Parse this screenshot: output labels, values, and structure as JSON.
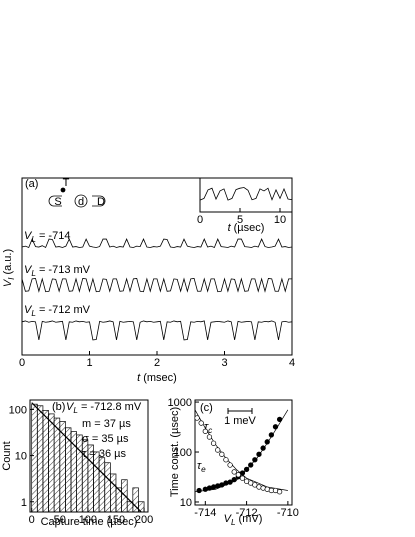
{
  "chart_data": [
    {
      "type": "line",
      "panel_label": "(a)",
      "device_labels": [
        "S",
        "d",
        "D",
        "T"
      ],
      "x_label": {
        "main": "t",
        "rest": "(msec)"
      },
      "y_label": {
        "main": "V",
        "sub": "I",
        "rest": "(a.u.)"
      },
      "xlim": [
        0,
        4
      ],
      "ylim": [
        0,
        4
      ],
      "xticks": [
        0,
        1,
        2,
        3,
        4
      ],
      "x": [
        0,
        0.05,
        0.1,
        0.15,
        0.2,
        0.25,
        0.3,
        0.35,
        0.4,
        0.45,
        0.5,
        0.55,
        0.6,
        0.65,
        0.7,
        0.75,
        0.8,
        0.85,
        0.9,
        0.95,
        1,
        1.05,
        1.1,
        1.15,
        1.2,
        1.25,
        1.3,
        1.35,
        1.4,
        1.45,
        1.5,
        1.55,
        1.6,
        1.65,
        1.7,
        1.75,
        1.8,
        1.85,
        1.9,
        1.95,
        2,
        2.05,
        2.1,
        2.15,
        2.2,
        2.25,
        2.3,
        2.35,
        2.4,
        2.45,
        2.5,
        2.55,
        2.6,
        2.65,
        2.7,
        2.75,
        2.8,
        2.85,
        2.9,
        2.95,
        3,
        3.05,
        3.1,
        3.15,
        3.2,
        3.25,
        3.3,
        3.35,
        3.4,
        3.45,
        3.5,
        3.55,
        3.6,
        3.65,
        3.7,
        3.75,
        3.8,
        3.85,
        3.9,
        3.95,
        4
      ],
      "series": [
        {
          "name": {
            "main": "V",
            "sub": "L",
            "rest": "= -714"
          },
          "color": "#000000",
          "values": [
            2.44,
            2.46,
            2.43,
            2.62,
            2.45,
            2.44,
            2.47,
            2.43,
            2.62,
            2.61,
            2.44,
            2.45,
            2.43,
            2.46,
            2.62,
            2.44,
            2.45,
            2.43,
            2.44,
            2.62,
            2.46,
            2.44,
            2.43,
            2.45,
            2.62,
            2.62,
            2.44,
            2.46,
            2.43,
            2.45,
            2.44,
            2.62,
            2.44,
            2.43,
            2.46,
            2.45,
            2.62,
            2.44,
            2.43,
            2.45,
            2.44,
            2.46,
            2.62,
            2.61,
            2.44,
            2.43,
            2.45,
            2.44,
            2.62,
            2.46,
            2.44,
            2.43,
            2.45,
            2.44,
            2.62,
            2.44,
            2.46,
            2.43,
            2.62,
            2.45,
            2.44,
            2.43,
            2.46,
            2.44,
            2.62,
            2.62,
            2.45,
            2.44,
            2.43,
            2.46,
            2.44,
            2.62,
            2.45,
            2.43,
            2.44,
            2.46,
            2.62,
            2.44,
            2.45,
            2.43,
            2.44
          ]
        },
        {
          "name": {
            "main": "V",
            "sub": "L",
            "rest": "= -713 mV"
          },
          "color": "#000000",
          "values": [
            1.72,
            1.44,
            1.45,
            1.72,
            1.73,
            1.44,
            1.72,
            1.43,
            1.44,
            1.72,
            1.71,
            1.44,
            1.72,
            1.72,
            1.44,
            1.45,
            1.72,
            1.44,
            1.73,
            1.72,
            1.44,
            1.72,
            1.43,
            1.44,
            1.72,
            1.71,
            1.44,
            1.72,
            1.72,
            1.44,
            1.45,
            1.72,
            1.44,
            1.72,
            1.73,
            1.44,
            1.43,
            1.72,
            1.44,
            1.72,
            1.72,
            1.44,
            1.72,
            1.44,
            1.45,
            1.72,
            1.71,
            1.44,
            1.72,
            1.44,
            1.72,
            1.73,
            1.44,
            1.44,
            1.72,
            1.44,
            1.72,
            1.72,
            1.43,
            1.44,
            1.72,
            1.44,
            1.72,
            1.71,
            1.44,
            1.72,
            1.44,
            1.45,
            1.72,
            1.72,
            1.44,
            1.72,
            1.44,
            1.73,
            1.72,
            1.44,
            1.44,
            1.72,
            1.44,
            1.72,
            1.72
          ]
        },
        {
          "name": {
            "main": "V",
            "sub": "L",
            "rest": "= -712 mV"
          },
          "color": "#000000",
          "values": [
            0.75,
            0.77,
            0.74,
            0.76,
            0.75,
            0.34,
            0.76,
            0.74,
            0.75,
            0.77,
            0.74,
            0.75,
            0.76,
            0.34,
            0.75,
            0.74,
            0.77,
            0.75,
            0.76,
            0.74,
            0.75,
            0.34,
            0.35,
            0.76,
            0.74,
            0.75,
            0.77,
            0.75,
            0.34,
            0.76,
            0.74,
            0.75,
            0.76,
            0.75,
            0.34,
            0.74,
            0.77,
            0.75,
            0.76,
            0.74,
            0.75,
            0.76,
            0.34,
            0.75,
            0.74,
            0.77,
            0.75,
            0.76,
            0.34,
            0.35,
            0.75,
            0.74,
            0.76,
            0.75,
            0.77,
            0.34,
            0.74,
            0.75,
            0.76,
            0.75,
            0.74,
            0.77,
            0.75,
            0.34,
            0.76,
            0.74,
            0.75,
            0.76,
            0.75,
            0.34,
            0.75,
            0.74,
            0.76,
            0.75,
            0.77,
            0.74,
            0.34,
            0.75,
            0.76,
            0.74,
            0.75
          ]
        }
      ]
    },
    {
      "type": "line",
      "x_label": {
        "main": "t",
        "rest": "(µsec)"
      },
      "xlim": [
        0,
        11.5
      ],
      "ylim": [
        0,
        1
      ],
      "xticks": [
        0,
        5,
        10
      ],
      "x": [
        0,
        0.5,
        1,
        1.5,
        2,
        2.5,
        3,
        3.5,
        4,
        4.5,
        5,
        5.5,
        6,
        6.5,
        7,
        7.5,
        8,
        8.5,
        9,
        9.5,
        10,
        10.5,
        11,
        11.5
      ],
      "series": [
        {
          "color": "#000000",
          "values": [
            0.35,
            0.4,
            0.65,
            0.7,
            0.38,
            0.62,
            0.68,
            0.35,
            0.4,
            0.66,
            0.7,
            0.72,
            0.64,
            0.36,
            0.4,
            0.68,
            0.62,
            0.7,
            0.36,
            0.65,
            0.4,
            0.68,
            0.38,
            0.36
          ]
        }
      ]
    },
    {
      "type": "histogram",
      "panel_label": "(b)",
      "condition": {
        "main": "V",
        "sub": "L",
        "rest": "= -712.8 mV"
      },
      "annotations": [
        "m = 37 µs",
        "σ = 35 µs",
        "τ = 36 µs"
      ],
      "x_label": "Capture time (µsec)",
      "y_label": "Count",
      "log_y": true,
      "xlim": [
        -3,
        207
      ],
      "ylim": [
        0.6,
        160
      ],
      "xticks": [
        0,
        50,
        100,
        150,
        200
      ],
      "yticks": [
        1,
        10,
        100
      ],
      "bins": [
        0,
        10,
        20,
        30,
        40,
        50,
        60,
        70,
        80,
        90,
        100,
        110,
        120,
        130,
        140,
        150,
        160,
        170,
        180,
        190,
        200
      ],
      "counts": [
        130,
        120,
        95,
        80,
        65,
        55,
        40,
        33,
        28,
        22,
        17,
        12,
        9,
        7,
        4,
        2,
        3,
        1,
        2,
        1
      ],
      "fit": {
        "x": [
          0,
          195
        ],
        "values": [
          140,
          0.6
        ]
      }
    },
    {
      "type": "scatter",
      "panel_label": "(c)",
      "scale_bar": "1 meV",
      "x_label": {
        "main": "V",
        "sub": "L",
        "rest": "(mV)"
      },
      "y_label": "Time const. (µsec)",
      "log_y": true,
      "xlim": [
        -714.5,
        -709.8
      ],
      "ylim": [
        8.7,
        1100
      ],
      "xticks": [
        -714,
        -712,
        -710
      ],
      "yticks": [
        10,
        100,
        1000
      ],
      "series": [
        {
          "name": {
            "main": "τ",
            "sub": "c"
          },
          "marker": "filled",
          "x": [
            -714.3,
            -714.0,
            -713.8,
            -713.6,
            -713.4,
            -713.2,
            -713.0,
            -712.8,
            -712.6,
            -712.4,
            -712.2,
            -712.0,
            -711.8,
            -711.6,
            -711.4,
            -711.2,
            -711.0,
            -710.8,
            -710.6,
            -710.4
          ],
          "values": [
            17,
            18,
            19,
            20,
            21,
            22,
            24,
            25,
            28,
            32,
            38,
            45,
            55,
            70,
            90,
            120,
            160,
            220,
            320,
            450
          ]
        },
        {
          "name": {
            "main": "τ",
            "sub": "e"
          },
          "marker": "open",
          "x": [
            -714.4,
            -714.2,
            -714.0,
            -713.8,
            -713.6,
            -713.4,
            -713.2,
            -713.0,
            -712.8,
            -712.6,
            -712.4,
            -712.2,
            -712.0,
            -711.8,
            -711.6,
            -711.4,
            -711.2,
            -711.0,
            -710.8,
            -710.6,
            -710.4
          ],
          "values": [
            480,
            380,
            260,
            200,
            150,
            110,
            90,
            70,
            55,
            40,
            35,
            30,
            26,
            24,
            22,
            20,
            19,
            18,
            17,
            17,
            16
          ]
        }
      ],
      "fits": [
        {
          "x": [
            -714.5,
            -713.5,
            -712.5,
            -711.5,
            -711,
            -710.5,
            -710
          ],
          "values": [
            16,
            18,
            27,
            75,
            150,
            320,
            700
          ]
        },
        {
          "x": [
            -714.5,
            -714,
            -713.5,
            -713,
            -712.5,
            -712,
            -711,
            -710
          ],
          "values": [
            700,
            300,
            140,
            75,
            45,
            30,
            20,
            17
          ]
        }
      ]
    }
  ]
}
